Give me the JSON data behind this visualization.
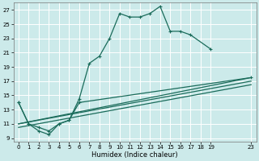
{
  "title": "",
  "xlabel": "Humidex (Indice chaleur)",
  "bg_color": "#cceaea",
  "grid_color": "#ffffff",
  "line_color": "#1a6b5a",
  "xlim": [
    -0.5,
    23.5
  ],
  "ylim": [
    8.5,
    28
  ],
  "xticks": [
    0,
    1,
    2,
    3,
    4,
    5,
    6,
    7,
    8,
    9,
    10,
    11,
    12,
    13,
    14,
    15,
    16,
    17,
    18,
    19,
    23
  ],
  "yticks": [
    9,
    11,
    13,
    15,
    17,
    19,
    21,
    23,
    25,
    27
  ],
  "series1_x": [
    0,
    1,
    2,
    3,
    4,
    5,
    6,
    7,
    8,
    9,
    10,
    11,
    12,
    13,
    14,
    15,
    16,
    17,
    19
  ],
  "series1_y": [
    14,
    11,
    10,
    9.5,
    11,
    11.5,
    14.5,
    19.5,
    20.5,
    23,
    26.5,
    26,
    26,
    26.5,
    27.5,
    24,
    24,
    23.5,
    21.5
  ],
  "series2_x": [
    0,
    1,
    2,
    3,
    4,
    5,
    6,
    23
  ],
  "series2_y": [
    14,
    11,
    10.5,
    10,
    11,
    11.5,
    14,
    17.5
  ],
  "series3_x": [
    0,
    23
  ],
  "series3_y": [
    11,
    17.5
  ],
  "series4_x": [
    0,
    23
  ],
  "series4_y": [
    11,
    17
  ],
  "series5_x": [
    0,
    23
  ],
  "series5_y": [
    10.5,
    16.5
  ],
  "lw": 0.9,
  "ms": 3.5
}
